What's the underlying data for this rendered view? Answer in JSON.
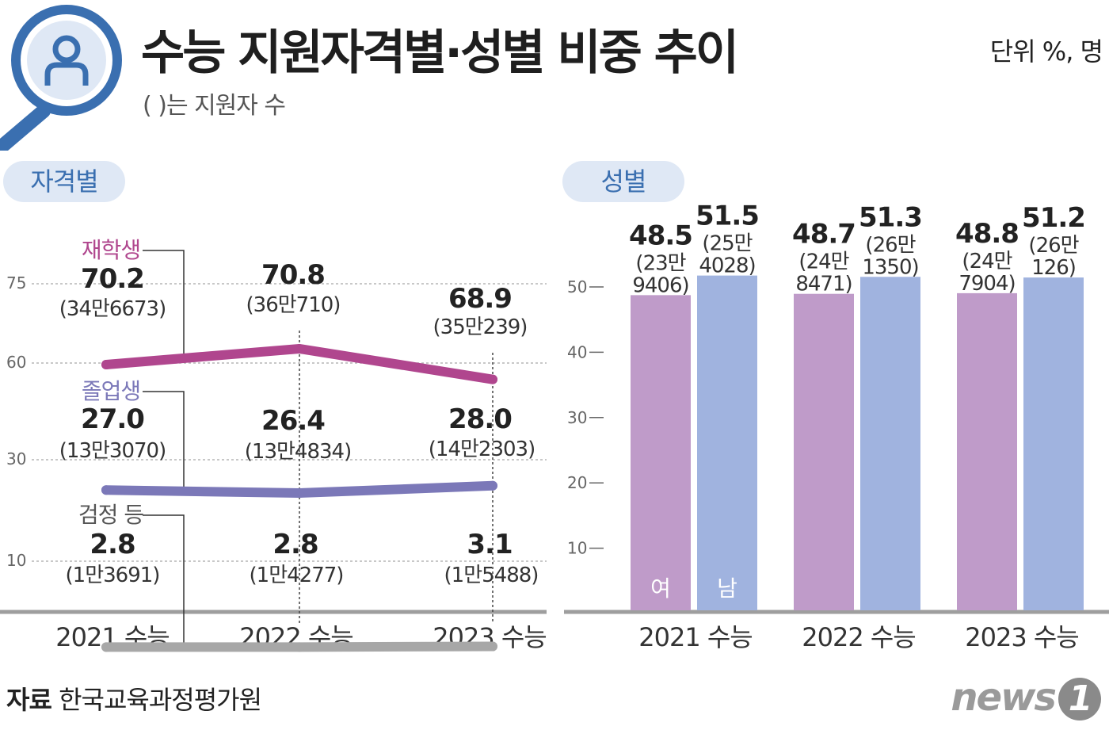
{
  "header": {
    "title": "수능 지원자격별·성별 비중 추이",
    "subtitle": "( )는 지원자 수",
    "unit": "단위 %, 명"
  },
  "tags": {
    "qualification": "자격별",
    "gender": "성별"
  },
  "footer": {
    "source_label": "자료",
    "source_org": "한국교육과정평가원",
    "logo": "news",
    "logo_mark": "1"
  },
  "colors": {
    "enrolled": "#b0468e",
    "graduate": "#7b78b8",
    "ged": "#a7a7a7",
    "female": "#bf9bc9",
    "male": "#a0b3df",
    "accent": "#3a6fb0",
    "tag_bg": "#dfe8f5"
  },
  "chart_data": [
    {
      "type": "line",
      "title": "자격별",
      "categories": [
        "2021 수능",
        "2022 수능",
        "2023 수능"
      ],
      "yticks": [
        75,
        60,
        30,
        10
      ],
      "series": [
        {
          "name": "재학생",
          "values": [
            70.2,
            70.8,
            68.9
          ],
          "counts": [
            "(34만6673)",
            "(36만710)",
            "(35만239)"
          ]
        },
        {
          "name": "졸업생",
          "values": [
            27.0,
            26.4,
            28.0
          ],
          "counts": [
            "(13만3070)",
            "(13만4834)",
            "(14만2303)"
          ]
        },
        {
          "name": "검정 등",
          "values": [
            2.8,
            2.8,
            3.1
          ],
          "counts": [
            "(1만3691)",
            "(1만4277)",
            "(1만5488)"
          ]
        }
      ]
    },
    {
      "type": "bar",
      "title": "성별",
      "categories": [
        "2021 수능",
        "2022 수능",
        "2023 수능"
      ],
      "ylim": [
        0,
        60
      ],
      "yticks": [
        10,
        20,
        30,
        40,
        50
      ],
      "series": [
        {
          "name": "여",
          "values": [
            48.5,
            48.7,
            48.8
          ],
          "counts": [
            [
              "(23만",
              "9406)"
            ],
            [
              "(24만",
              "8471)"
            ],
            [
              "(24만",
              "7904)"
            ]
          ]
        },
        {
          "name": "남",
          "values": [
            51.5,
            51.3,
            51.2
          ],
          "counts": [
            [
              "(25만",
              "4028)"
            ],
            [
              "(26만",
              "1350)"
            ],
            [
              "(26만",
              "126)"
            ]
          ]
        }
      ]
    }
  ]
}
